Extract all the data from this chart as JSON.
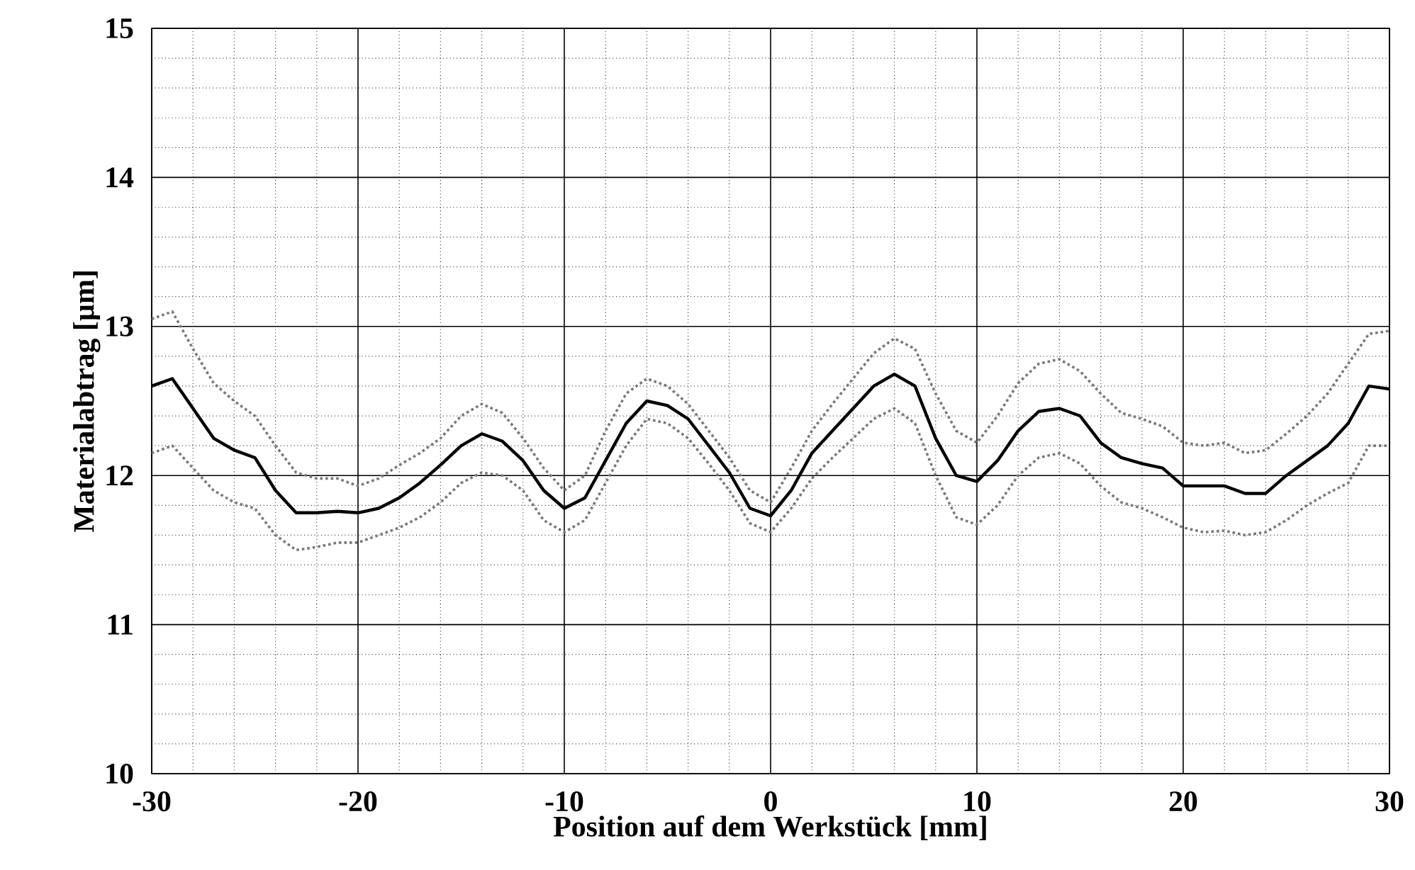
{
  "chart_data": {
    "type": "line",
    "xlabel": "Position auf dem Werkstück [mm]",
    "ylabel": "Materialabtrag [µm]",
    "x": [
      -30,
      -29,
      -28,
      -27,
      -26,
      -25,
      -24,
      -23,
      -22,
      -21,
      -20,
      -19,
      -18,
      -17,
      -16,
      -15,
      -14,
      -13,
      -12,
      -11,
      -10,
      -9,
      -8,
      -7,
      -6,
      -5,
      -4,
      -3,
      -2,
      -1,
      0,
      1,
      2,
      3,
      4,
      5,
      6,
      7,
      8,
      9,
      10,
      11,
      12,
      13,
      14,
      15,
      16,
      17,
      18,
      19,
      20,
      21,
      22,
      23,
      24,
      25,
      26,
      27,
      28,
      29,
      30
    ],
    "series": [
      {
        "color": "#000000",
        "line_style": "solid",
        "values": [
          12.6,
          12.65,
          12.45,
          12.25,
          12.17,
          12.12,
          11.9,
          11.75,
          11.75,
          11.76,
          11.75,
          11.78,
          11.85,
          11.95,
          12.07,
          12.2,
          12.28,
          12.23,
          12.1,
          11.9,
          11.78,
          11.85,
          12.1,
          12.35,
          12.5,
          12.47,
          12.38,
          12.2,
          12.02,
          11.78,
          11.73,
          11.9,
          12.15,
          12.3,
          12.45,
          12.6,
          12.68,
          12.6,
          12.25,
          12.0,
          11.96,
          12.1,
          12.3,
          12.43,
          12.45,
          12.4,
          12.22,
          12.12,
          12.08,
          12.05,
          11.93,
          11.93,
          11.93,
          11.88,
          11.88,
          12.0,
          12.1,
          12.2,
          12.35,
          12.6,
          12.58
        ]
      },
      {
        "color": "#777777",
        "line_style": "dotted",
        "values": [
          13.05,
          13.1,
          12.85,
          12.62,
          12.5,
          12.4,
          12.2,
          12.02,
          11.98,
          11.98,
          11.93,
          11.98,
          12.07,
          12.15,
          12.25,
          12.4,
          12.48,
          12.42,
          12.25,
          12.05,
          11.9,
          12.0,
          12.3,
          12.55,
          12.65,
          12.6,
          12.48,
          12.3,
          12.12,
          11.9,
          11.82,
          12.05,
          12.3,
          12.48,
          12.65,
          12.82,
          12.92,
          12.85,
          12.55,
          12.3,
          12.22,
          12.4,
          12.62,
          12.75,
          12.78,
          12.7,
          12.55,
          12.42,
          12.38,
          12.33,
          12.22,
          12.2,
          12.22,
          12.15,
          12.17,
          12.28,
          12.4,
          12.55,
          12.75,
          12.95,
          12.97
        ]
      },
      {
        "color": "#777777",
        "line_style": "dotted",
        "values": [
          12.15,
          12.2,
          12.05,
          11.9,
          11.82,
          11.78,
          11.6,
          11.5,
          11.52,
          11.55,
          11.55,
          11.6,
          11.65,
          11.72,
          11.82,
          11.95,
          12.02,
          12.0,
          11.9,
          11.7,
          11.62,
          11.7,
          11.95,
          12.2,
          12.38,
          12.35,
          12.25,
          12.08,
          11.9,
          11.68,
          11.62,
          11.78,
          11.98,
          12.12,
          12.25,
          12.38,
          12.45,
          12.35,
          12.0,
          11.72,
          11.67,
          11.8,
          12.0,
          12.12,
          12.15,
          12.08,
          11.93,
          11.82,
          11.78,
          11.72,
          11.65,
          11.62,
          11.63,
          11.6,
          11.62,
          11.7,
          11.8,
          11.88,
          11.95,
          12.2,
          12.2
        ]
      }
    ],
    "xlim": [
      -30,
      30
    ],
    "xticks": [
      -30,
      {
        "value": -28,
        "label": null
      },
      {
        "value": -26,
        "label": null
      },
      {
        "value": -24,
        "label": null
      },
      {
        "value": -22,
        "label": null
      },
      -20,
      {
        "value": -18,
        "label": null
      },
      {
        "value": -16,
        "label": null
      },
      {
        "value": -14,
        "label": null
      },
      {
        "value": -12,
        "label": null
      },
      -10,
      {
        "value": -8,
        "label": null
      },
      {
        "value": -6,
        "label": null
      },
      {
        "value": -4,
        "label": null
      },
      {
        "value": -2,
        "label": null
      },
      0,
      {
        "value": 2,
        "label": null
      },
      {
        "value": 4,
        "label": null
      },
      {
        "value": 6,
        "label": null
      },
      {
        "value": 8,
        "label": null
      },
      10,
      {
        "value": 12,
        "label": null
      },
      {
        "value": 14,
        "label": null
      },
      {
        "value": 16,
        "label": null
      },
      {
        "value": 18,
        "label": null
      },
      20,
      {
        "value": 22,
        "label": null
      },
      {
        "value": 24,
        "label": null
      },
      {
        "value": 26,
        "label": null
      },
      {
        "value": 28,
        "label": null
      },
      30
    ],
    "ylim": [
      10,
      15
    ],
    "yticks": [
      10,
      {
        "value": 10.2,
        "label": null
      },
      {
        "value": 10.4,
        "label": null
      },
      {
        "value": 10.6,
        "label": null
      },
      {
        "value": 10.8,
        "label": null
      },
      11,
      {
        "value": 11.2,
        "label": null
      },
      {
        "value": 11.4,
        "label": null
      },
      {
        "value": 11.6,
        "label": null
      },
      {
        "value": 11.8,
        "label": null
      },
      12,
      {
        "value": 12.2,
        "label": null
      },
      {
        "value": 12.4,
        "label": null
      },
      {
        "value": 12.6,
        "label": null
      },
      {
        "value": 12.8,
        "label": null
      },
      13,
      {
        "value": 13.2,
        "label": null
      },
      {
        "value": 13.4,
        "label": null
      },
      {
        "value": 13.6,
        "label": null
      },
      {
        "value": 13.8,
        "label": null
      },
      14,
      {
        "value": 14.2,
        "label": null
      },
      {
        "value": 14.4,
        "label": null
      },
      {
        "value": 14.6,
        "label": null
      },
      {
        "value": 14.8,
        "label": null
      },
      15
    ],
    "grid": true,
    "marker": "none"
  }
}
